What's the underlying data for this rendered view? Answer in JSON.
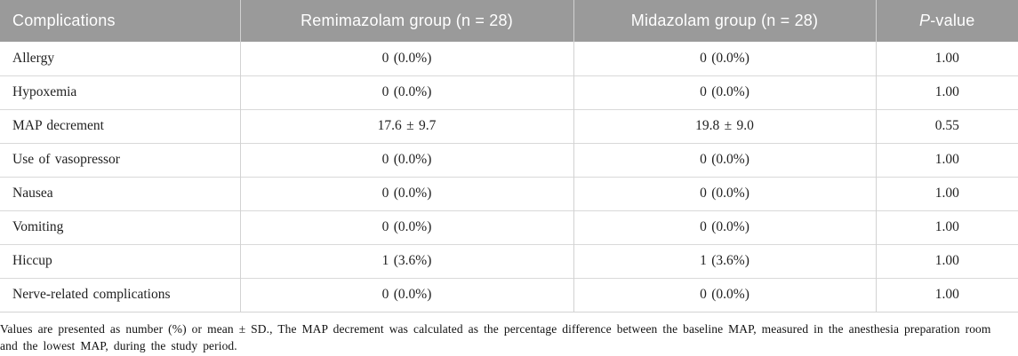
{
  "colors": {
    "header_bg": "#9a9a9a",
    "header_text": "#ffffff",
    "row_border": "#d9d9d9",
    "column_border": "#d2d2d2",
    "body_text": "#1f1f1f"
  },
  "table": {
    "headers": [
      "Complications",
      "Remimazolam group (n = 28)",
      "Midazolam group (n = 28)"
    ],
    "p_header": {
      "italic": "P",
      "rest": "-value"
    },
    "rows": [
      {
        "name": "Allergy",
        "remimazolam": "0 (0.0%)",
        "midazolam": "0 (0.0%)",
        "p": "1.00"
      },
      {
        "name": "Hypoxemia",
        "remimazolam": "0 (0.0%)",
        "midazolam": "0 (0.0%)",
        "p": "1.00"
      },
      {
        "name": "MAP decrement",
        "remimazolam": "17.6 ± 9.7",
        "midazolam": "19.8 ± 9.0",
        "p": "0.55"
      },
      {
        "name": "Use of vasopressor",
        "remimazolam": "0 (0.0%)",
        "midazolam": "0 (0.0%)",
        "p": "1.00"
      },
      {
        "name": "Nausea",
        "remimazolam": "0 (0.0%)",
        "midazolam": "0 (0.0%)",
        "p": "1.00"
      },
      {
        "name": "Vomiting",
        "remimazolam": "0 (0.0%)",
        "midazolam": "0 (0.0%)",
        "p": "1.00"
      },
      {
        "name": "Hiccup",
        "remimazolam": "1 (3.6%)",
        "midazolam": "1 (3.6%)",
        "p": "1.00"
      },
      {
        "name": "Nerve-related complications",
        "remimazolam": "0 (0.0%)",
        "midazolam": "0 (0.0%)",
        "p": "1.00"
      }
    ]
  },
  "footnote": {
    "lines": [
      "Values are presented as number (%) or mean ± SD., The MAP decrement was calculated as the percentage difference between the baseline MAP, measured in the anesthesia preparation room",
      "and the lowest MAP, during the study period."
    ]
  }
}
